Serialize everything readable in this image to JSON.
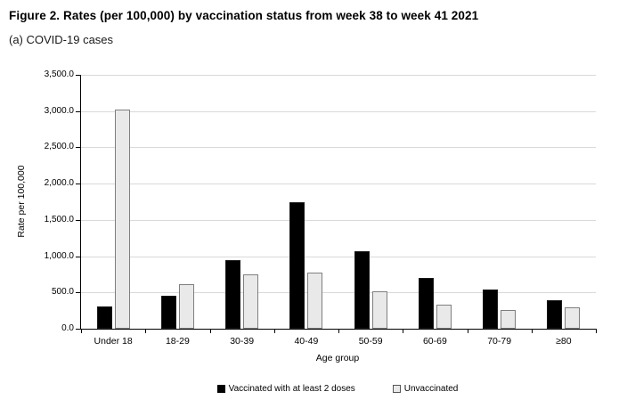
{
  "figure": {
    "title": "Figure 2. Rates (per 100,000) by vaccination status from week 38 to week 41 2021",
    "subtitle": "(a) COVID-19 cases"
  },
  "chart_data": {
    "type": "bar",
    "title": "(a) COVID-19 cases",
    "categories": [
      "Under 18",
      "18-29",
      "30-39",
      "40-49",
      "50-59",
      "60-69",
      "70-79",
      "≥80"
    ],
    "series": [
      {
        "name": "Vaccinated with at least 2 doses",
        "color": "#000000",
        "border": "#1a1a1a",
        "values": [
          310,
          460,
          950,
          1740,
          1070,
          700,
          540,
          390
        ]
      },
      {
        "name": "Unvaccinated",
        "color": "#e9e9e9",
        "border": "#7f7f7f",
        "values": [
          3020,
          610,
          750,
          770,
          520,
          330,
          260,
          300
        ]
      }
    ],
    "xlabel": "Age group",
    "ylabel": "Rate per 100,000",
    "ylim": [
      0,
      3500
    ],
    "ytick_step": 500,
    "ytick_labels": [
      "0.0",
      "500.0",
      "1,000.0",
      "1,500.0",
      "2,000.0",
      "2,500.0",
      "3,000.0",
      "3,500.0"
    ],
    "grid": true,
    "legend_position": "bottom"
  }
}
